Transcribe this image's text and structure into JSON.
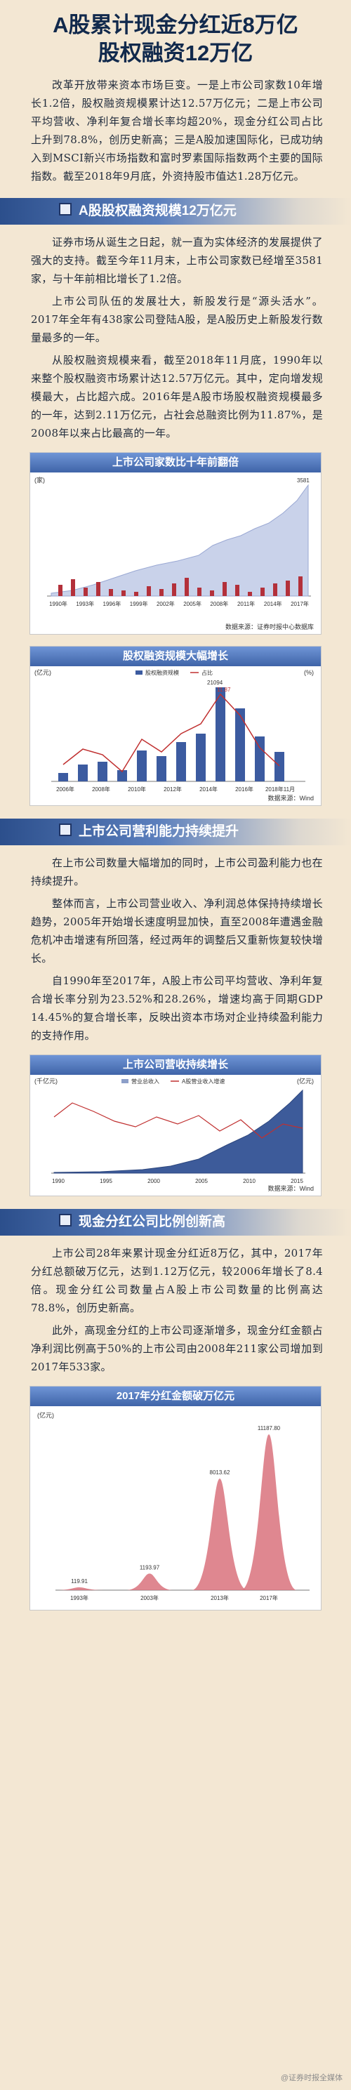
{
  "title": {
    "line1": "A股累计现金分红近8万亿",
    "line2": "股权融资12万亿"
  },
  "intro": "改革开放带来资本市场巨变。一是上市公司家数10年增长1.2倍，股权融资规模累计达12.57万亿元；二是上市公司平均营收、净利年复合增长率均超20%，现金分红公司占比上升到78.8%，创历史新高；三是A股加速国际化，已成功纳入到MSCI新兴市场指数和富时罗素国际指数两个主要的国际指数。截至2018年9月底，外资持股市值达1.28万亿元。",
  "sections": [
    {
      "label": "A股股权融资规模12万亿元",
      "paragraphs": [
        "证券市场从诞生之日起，就一直为实体经济的发展提供了强大的支持。截至今年11月末，上市公司家数已经增至3581家，与十年前相比增长了1.2倍。",
        "上市公司队伍的发展壮大，新股发行是“源头活水”。2017年全年有438家公司登陆A股，是A股历史上新股发行数量最多的一年。",
        "从股权融资规模来看，截至2018年11月底，1990年以来整个股权融资市场累计达12.57万亿元。其中，定向增发规模最大，占比超六成。2016年是A股市场股权融资规模最多的一年，达到2.11万亿元，占社会总融资比例为11.87%，是2008年以来占比最高的一年。"
      ]
    },
    {
      "label": "上市公司营利能力持续提升",
      "paragraphs": [
        "在上市公司数量大幅增加的同时，上市公司盈利能力也在持续提升。",
        "整体而言，上市公司营业收入、净利润总体保持持续增长趋势，2005年开始增长速度明显加快，直至2008年遭遇金融危机冲击增速有所回落，经过两年的调整后又重新恢复较快增长。",
        "自1990年至2017年，A股上市公司平均营收、净利年复合增长率分别为23.52%和28.26%，增速均高于同期GDP 14.45%的复合增长率，反映出资本市场对企业持续盈利能力的支持作用。"
      ]
    },
    {
      "label": "现金分红公司比例创新高",
      "paragraphs": [
        "上市公司28年来累计现金分红近8万亿，其中，2017年分红总额破万亿元，达到1.12万亿元，较2006年增长了8.4倍。现金分红公司数量占A股上市公司数量的比例高达78.8%，创历史新高。",
        "此外，高现金分红的上市公司逐渐增多，现金分红金额占净利润比例高于50%的上市公司由2008年211家公司增加到2017年533家。"
      ]
    }
  ],
  "charts": {
    "companies": {
      "title": "上市公司家数比十年前翻倍",
      "unit": "(家)",
      "source": "数据来源：证券时报中心数据库",
      "x_labels": [
        "1990年",
        "1993年",
        "1996年",
        "1999年",
        "2002年",
        "2005年",
        "2008年",
        "2011年",
        "2014年",
        "2017年"
      ],
      "end_label": "3581"
    },
    "financing": {
      "title": "股权融资规模大幅增长",
      "unit_left": "(亿元)",
      "unit_right": "(%)",
      "legend": [
        "股权融资规模",
        "占比"
      ],
      "labels": [
        "21094",
        "11.87"
      ],
      "x_labels": [
        "2006年",
        "2008年",
        "2010年",
        "2012年",
        "2014年",
        "2016年",
        "2018年11月"
      ],
      "source": "数据来源：Wind"
    },
    "revenue": {
      "title": "上市公司营收持续增长",
      "unit_left": "(千亿元)",
      "unit_right": "(亿元)",
      "legend": [
        "营业总收入",
        "A股营业收入增速"
      ],
      "x_labels": [
        "1990",
        "1995",
        "2000",
        "2005",
        "2010",
        "2015"
      ],
      "source": "数据来源：Wind"
    },
    "dividends": {
      "title": "2017年分红金额破万亿元",
      "unit": "(亿元)",
      "chart_data": {
        "type": "area",
        "categories": [
          "1993年",
          "2003年",
          "2013年",
          "2017年"
        ],
        "values": [
          119.91,
          1193.97,
          8013.62,
          11187.8
        ],
        "value_labels": [
          "119.91",
          "1193.97",
          "8013.62",
          "11187.80"
        ],
        "ylim": [
          0,
          12000
        ],
        "color": "#d9727c"
      }
    }
  },
  "watermark": "@证券时报全媒体"
}
